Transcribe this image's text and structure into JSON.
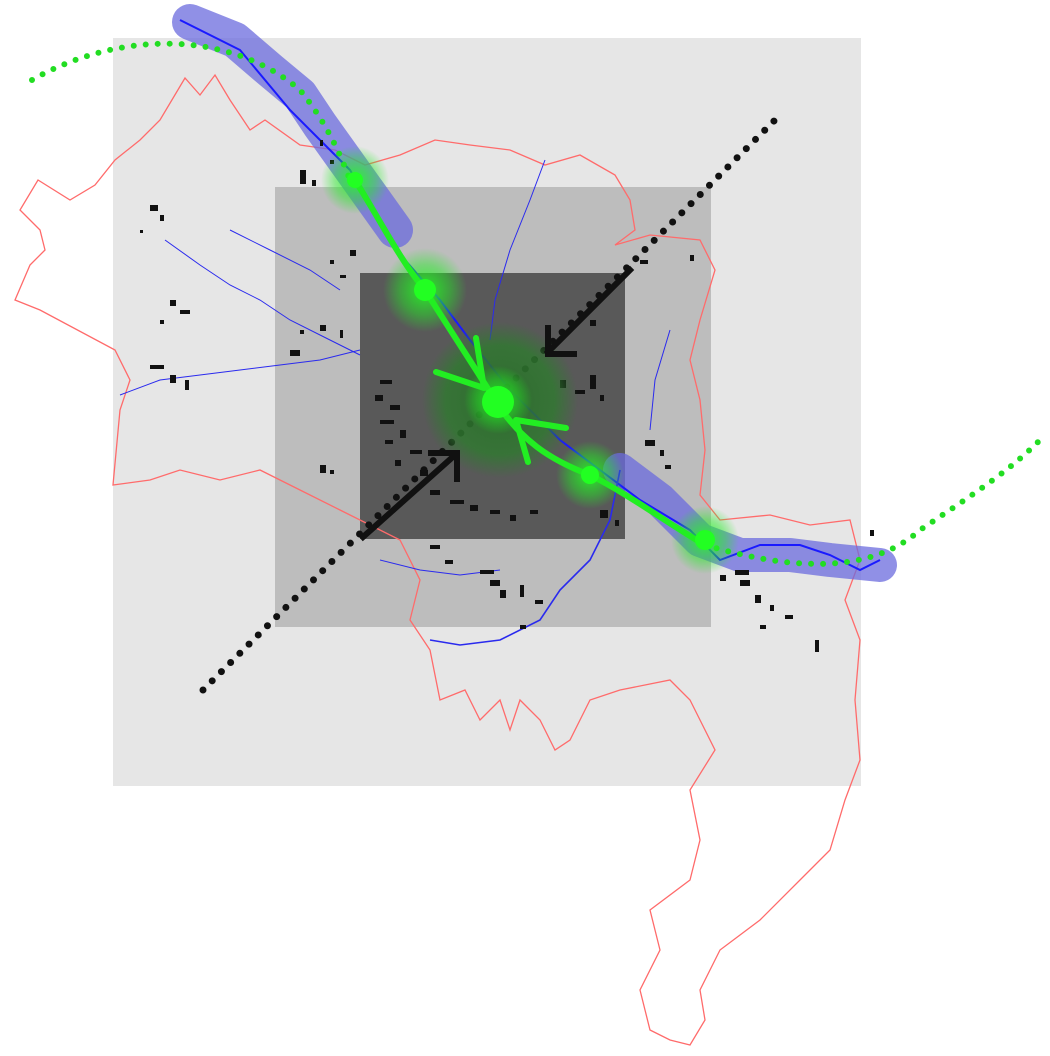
{
  "map": {
    "colors": {
      "background": "#ffffff",
      "zone_outer": "#e6e6e6",
      "zone_middle": "#bdbdbd",
      "zone_inner": "#595959",
      "boundary": "#ff6b6b",
      "river": "#1a1aff",
      "river_buffer": "#6b6bdd",
      "green_axis": "#22ee22",
      "green_dotted": "#22dd22",
      "black_axis": "#111111",
      "buildings": "#111111"
    },
    "icons": {
      "arrow": "arrow-icon",
      "node": "green-node-icon"
    }
  }
}
